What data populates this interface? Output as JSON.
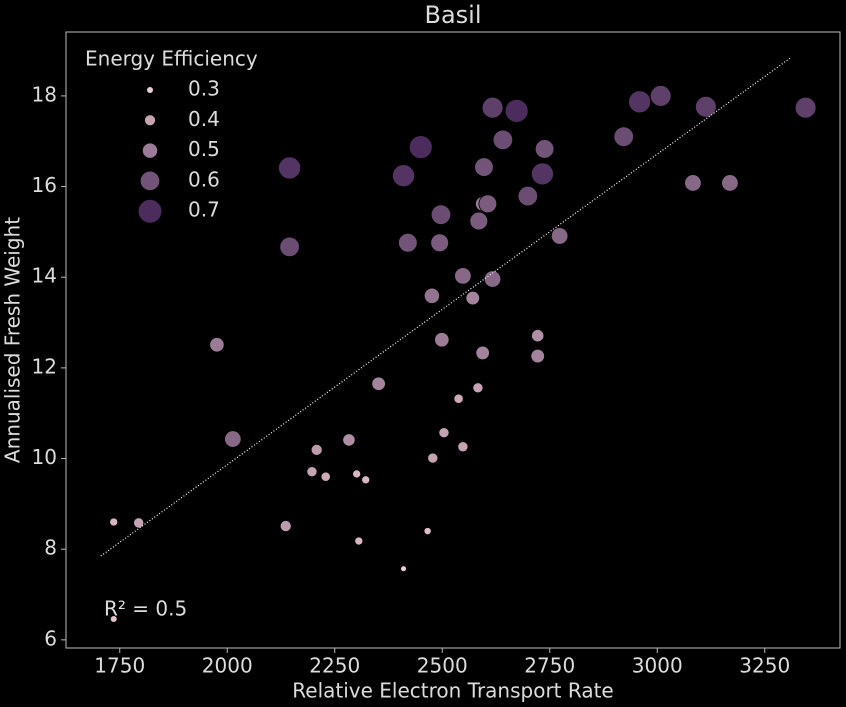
{
  "chart_data": {
    "type": "scatter",
    "title": "Basil",
    "xlabel": "Relative Electron Transport Rate",
    "ylabel": "Annualised Fresh Weight",
    "annotation": "R² = 0.5",
    "xlim": [
      1625,
      3425
    ],
    "xticks": [
      1750,
      2000,
      2250,
      2500,
      2750,
      3000,
      3250
    ],
    "ylim": [
      5.82,
      19.41
    ],
    "yticks": [
      6,
      8,
      10,
      12,
      14,
      16,
      18
    ],
    "color_range": [
      "#eccbd0",
      "#4b2c5c"
    ],
    "size_legend": {
      "title": "Energy Efficiency",
      "values": [
        0.3,
        0.4,
        0.5,
        0.6,
        0.7
      ],
      "corner": "upper left"
    },
    "x": [
      1736,
      1794,
      1736,
      1976,
      2013,
      2136,
      2145,
      2145,
      2197,
      2208,
      2229,
      2283,
      2301,
      2306,
      2322,
      2352,
      2410,
      2410,
      2420,
      2450,
      2466,
      2476,
      2478,
      2497,
      2494,
      2499,
      2504,
      2538,
      2548,
      2548,
      2571,
      2583,
      2585,
      2594,
      2594,
      2597,
      2606,
      2617,
      2617,
      2641,
      2673,
      2699,
      2722,
      2722,
      2733,
      2738,
      2773,
      2922,
      2959,
      3008,
      3083,
      3113,
      3169,
      3345
    ],
    "y": [
      8.6,
      8.58,
      6.46,
      12.51,
      10.43,
      8.51,
      16.41,
      14.67,
      9.71,
      10.19,
      9.6,
      10.41,
      9.66,
      8.18,
      9.53,
      11.65,
      7.57,
      16.24,
      14.76,
      16.87,
      8.4,
      13.59,
      10.01,
      15.38,
      14.76,
      12.62,
      10.57,
      11.32,
      10.26,
      14.03,
      13.54,
      11.56,
      15.24,
      12.33,
      15.62,
      16.43,
      15.62,
      17.74,
      13.96,
      17.03,
      17.67,
      15.79,
      12.71,
      12.26,
      16.28,
      16.83,
      14.91,
      17.1,
      17.87,
      18.0,
      16.08,
      17.76,
      16.08,
      17.74
    ],
    "size": [
      0.35,
      0.4,
      0.32,
      0.5,
      0.55,
      0.42,
      0.68,
      0.62,
      0.4,
      0.42,
      0.38,
      0.45,
      0.35,
      0.35,
      0.35,
      0.48,
      0.3,
      0.68,
      0.6,
      0.7,
      0.33,
      0.52,
      0.4,
      0.62,
      0.58,
      0.5,
      0.4,
      0.38,
      0.4,
      0.55,
      0.48,
      0.4,
      0.58,
      0.48,
      0.5,
      0.6,
      0.58,
      0.65,
      0.55,
      0.62,
      0.7,
      0.62,
      0.45,
      0.48,
      0.68,
      0.6,
      0.55,
      0.62,
      0.68,
      0.65,
      0.55,
      0.65,
      0.55,
      0.65
    ],
    "trendline": {
      "x": [
        1706,
        3310
      ],
      "y": [
        7.85,
        18.84
      ]
    }
  }
}
